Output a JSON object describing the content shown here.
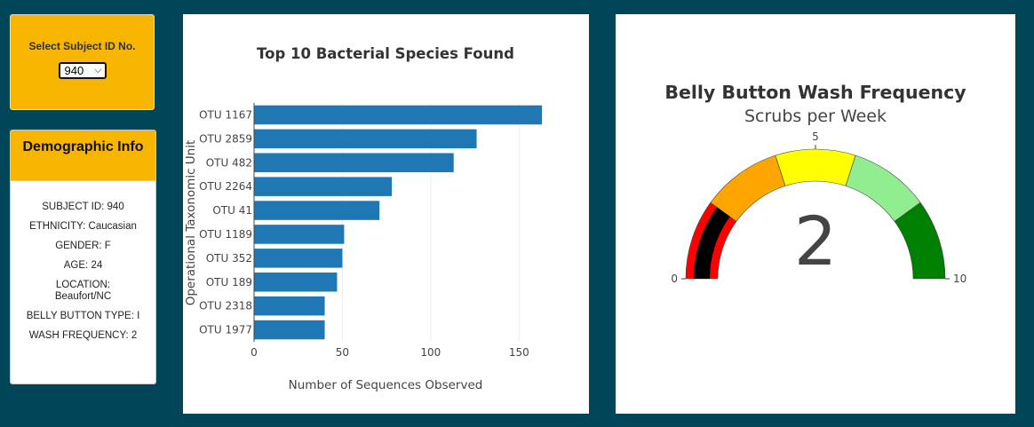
{
  "selector": {
    "label": "Select Subject ID No.",
    "value": "940"
  },
  "demographics": {
    "title": "Demographic Info",
    "rows": [
      "SUBJECT ID: 940",
      "ETHNICITY: Caucasian",
      "GENDER: F",
      "AGE: 24",
      "LOCATION: Beaufort/NC",
      "BELLY BUTTON TYPE: I",
      "WASH FREQUENCY: 2"
    ]
  },
  "chart_data": [
    {
      "type": "bar",
      "orientation": "horizontal",
      "title": "Top 10 Bacterial Species Found",
      "xlabel": "Number of Sequences Observed",
      "ylabel": "Operational Taxonomic Unit",
      "categories": [
        "OTU 1167",
        "OTU 2859",
        "OTU 482",
        "OTU 2264",
        "OTU 41",
        "OTU 1189",
        "OTU 352",
        "OTU 189",
        "OTU 2318",
        "OTU 1977"
      ],
      "values": [
        163,
        126,
        113,
        78,
        71,
        51,
        50,
        47,
        40,
        40
      ],
      "xlim": [
        0,
        175
      ],
      "xticks": [
        0,
        50,
        100,
        150
      ],
      "grid": true,
      "bar_color": "#1f77b4"
    },
    {
      "type": "gauge",
      "title": "Belly Button Wash Frequency",
      "subtitle": "Scrubs per Week",
      "value": 2,
      "range": [
        0,
        10
      ],
      "tick_labels": [
        "0",
        "5",
        "10"
      ],
      "steps": [
        {
          "from": 0,
          "to": 2,
          "color": "#ff0000"
        },
        {
          "from": 2,
          "to": 4,
          "color": "#ffa500"
        },
        {
          "from": 4,
          "to": 6,
          "color": "#ffff00"
        },
        {
          "from": 6,
          "to": 8,
          "color": "#90ee90"
        },
        {
          "from": 8,
          "to": 10,
          "color": "#008000"
        }
      ],
      "bar_color": "#000000"
    }
  ]
}
